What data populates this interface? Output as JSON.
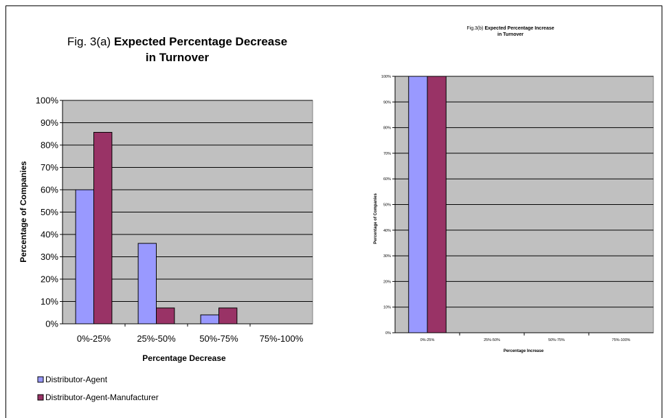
{
  "chart_data": [
    {
      "type": "bar",
      "title_prefix": "Fig. 3(a)",
      "title_bold_line1": "Expected Percentage Decrease",
      "title_bold_line2": "in Turnover",
      "xlabel": "Percentage Decrease",
      "ylabel": "Percentage of Companies",
      "categories": [
        "0%-25%",
        "25%-50%",
        "50%-75%",
        "75%-100%"
      ],
      "series": [
        {
          "name": "Distributor-Agent",
          "values": [
            60,
            36,
            4,
            0
          ]
        },
        {
          "name": "Distributor-Agent-Manufacturer",
          "values": [
            85.7,
            7.1,
            7.1,
            0
          ]
        }
      ],
      "ylim": [
        0,
        100
      ],
      "yticks": [
        "0%",
        "10%",
        "20%",
        "30%",
        "40%",
        "50%",
        "60%",
        "70%",
        "80%",
        "90%",
        "100%"
      ],
      "grid": true,
      "legend": "bottom-left"
    },
    {
      "type": "bar",
      "title_prefix": "Fig.3(b)",
      "title_bold_line1": "Expected Percentage Increase",
      "title_bold_line2": "in Turnover",
      "xlabel": "Percentage Increase",
      "ylabel": "Percentage of Companies",
      "categories": [
        "0%-25%",
        "25%-50%",
        "50%-75%",
        "75%-100%"
      ],
      "series": [
        {
          "values": [
            100,
            0,
            0,
            0
          ]
        },
        {
          "values": [
            100,
            0,
            0,
            0
          ]
        }
      ],
      "ylim": [
        0,
        100
      ],
      "yticks": [
        "0%",
        "10%",
        "20%",
        "30%",
        "40%",
        "50%",
        "60%",
        "70%",
        "80%",
        "90%",
        "100%"
      ],
      "grid": true
    }
  ],
  "colors": {
    "series1": "#9999ff",
    "series2": "#993366",
    "plot_bg": "#c0c0c0"
  }
}
